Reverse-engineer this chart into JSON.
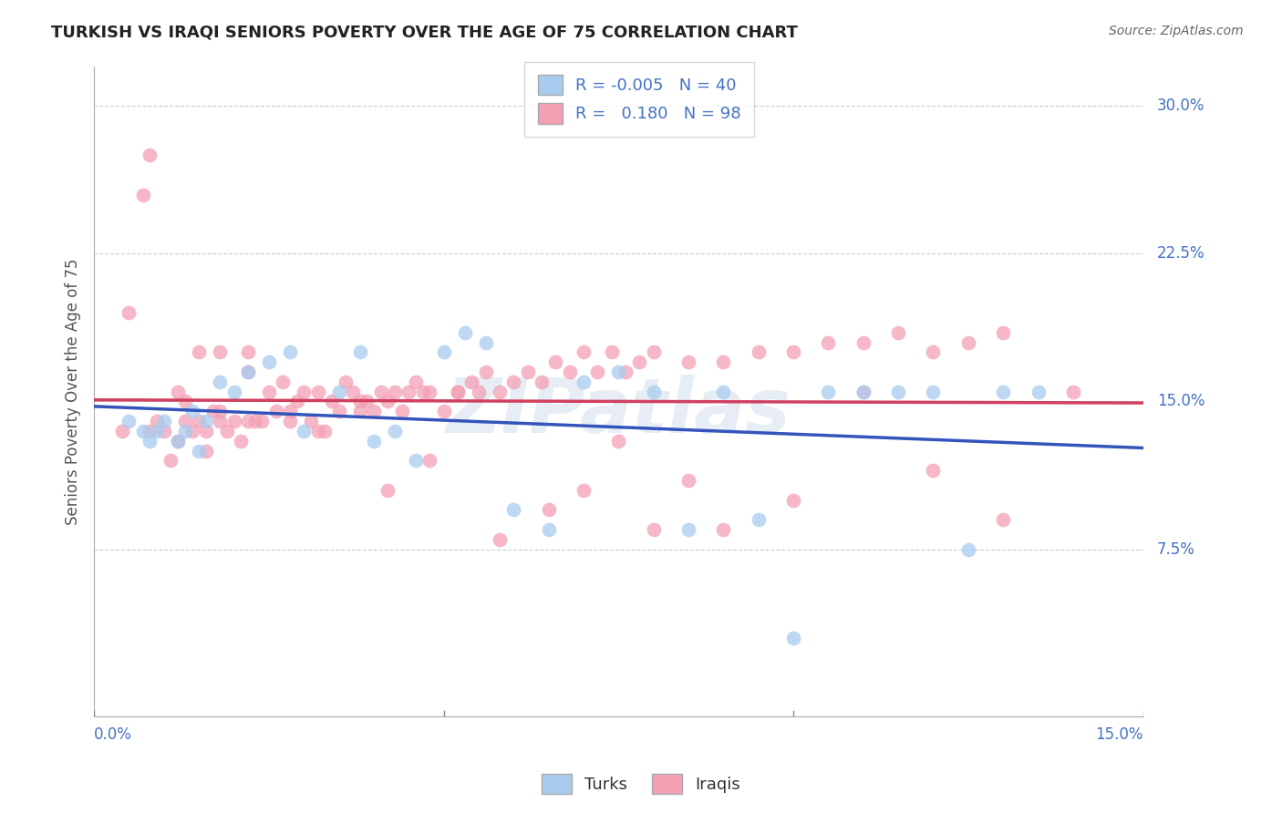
{
  "title": "TURKISH VS IRAQI SENIORS POVERTY OVER THE AGE OF 75 CORRELATION CHART",
  "source": "Source: ZipAtlas.com",
  "ylabel": "Seniors Poverty Over the Age of 75",
  "xmin": 0.0,
  "xmax": 0.15,
  "ymin": -0.01,
  "ymax": 0.32,
  "turks_R": "-0.005",
  "turks_N": "40",
  "iraqis_R": "0.180",
  "iraqis_N": "98",
  "turks_color": "#A8CCF0",
  "iraqis_color": "#F4A0B5",
  "turks_line_color": "#3355BB",
  "iraqis_line_color": "#D04060",
  "watermark": "ZIPatlas",
  "turks_x": [
    0.005,
    0.007,
    0.008,
    0.009,
    0.01,
    0.012,
    0.013,
    0.014,
    0.015,
    0.016,
    0.018,
    0.02,
    0.022,
    0.025,
    0.028,
    0.03,
    0.035,
    0.038,
    0.04,
    0.043,
    0.046,
    0.05,
    0.053,
    0.056,
    0.06,
    0.065,
    0.07,
    0.075,
    0.08,
    0.085,
    0.09,
    0.095,
    0.1,
    0.105,
    0.11,
    0.115,
    0.12,
    0.125,
    0.13,
    0.135
  ],
  "turks_y": [
    0.14,
    0.135,
    0.13,
    0.135,
    0.14,
    0.13,
    0.135,
    0.145,
    0.125,
    0.14,
    0.16,
    0.155,
    0.165,
    0.17,
    0.175,
    0.135,
    0.155,
    0.175,
    0.13,
    0.135,
    0.12,
    0.175,
    0.185,
    0.18,
    0.095,
    0.085,
    0.16,
    0.165,
    0.155,
    0.085,
    0.155,
    0.09,
    0.03,
    0.155,
    0.155,
    0.155,
    0.155,
    0.075,
    0.155,
    0.155
  ],
  "iraqis_x": [
    0.004,
    0.005,
    0.007,
    0.008,
    0.009,
    0.01,
    0.011,
    0.012,
    0.013,
    0.013,
    0.014,
    0.015,
    0.015,
    0.016,
    0.016,
    0.017,
    0.018,
    0.018,
    0.019,
    0.02,
    0.021,
    0.022,
    0.022,
    0.023,
    0.024,
    0.025,
    0.026,
    0.027,
    0.028,
    0.029,
    0.03,
    0.031,
    0.032,
    0.033,
    0.034,
    0.035,
    0.036,
    0.037,
    0.038,
    0.039,
    0.04,
    0.041,
    0.042,
    0.043,
    0.044,
    0.045,
    0.046,
    0.047,
    0.048,
    0.05,
    0.052,
    0.054,
    0.055,
    0.056,
    0.058,
    0.06,
    0.062,
    0.064,
    0.066,
    0.068,
    0.07,
    0.072,
    0.074,
    0.076,
    0.078,
    0.08,
    0.085,
    0.09,
    0.095,
    0.1,
    0.105,
    0.11,
    0.115,
    0.12,
    0.125,
    0.13,
    0.008,
    0.012,
    0.018,
    0.022,
    0.028,
    0.032,
    0.038,
    0.042,
    0.048,
    0.052,
    0.058,
    0.065,
    0.07,
    0.075,
    0.08,
    0.085,
    0.09,
    0.1,
    0.11,
    0.12,
    0.13,
    0.14
  ],
  "iraqis_y": [
    0.135,
    0.195,
    0.255,
    0.135,
    0.14,
    0.135,
    0.12,
    0.13,
    0.14,
    0.15,
    0.135,
    0.175,
    0.14,
    0.125,
    0.135,
    0.145,
    0.145,
    0.14,
    0.135,
    0.14,
    0.13,
    0.175,
    0.14,
    0.14,
    0.14,
    0.155,
    0.145,
    0.16,
    0.14,
    0.15,
    0.155,
    0.14,
    0.155,
    0.135,
    0.15,
    0.145,
    0.16,
    0.155,
    0.145,
    0.15,
    0.145,
    0.155,
    0.15,
    0.155,
    0.145,
    0.155,
    0.16,
    0.155,
    0.155,
    0.145,
    0.155,
    0.16,
    0.155,
    0.165,
    0.155,
    0.16,
    0.165,
    0.16,
    0.17,
    0.165,
    0.175,
    0.165,
    0.175,
    0.165,
    0.17,
    0.175,
    0.17,
    0.17,
    0.175,
    0.175,
    0.18,
    0.18,
    0.185,
    0.175,
    0.18,
    0.185,
    0.275,
    0.155,
    0.175,
    0.165,
    0.145,
    0.135,
    0.15,
    0.105,
    0.12,
    0.155,
    0.08,
    0.095,
    0.105,
    0.13,
    0.085,
    0.11,
    0.085,
    0.1,
    0.155,
    0.115,
    0.09,
    0.155
  ]
}
